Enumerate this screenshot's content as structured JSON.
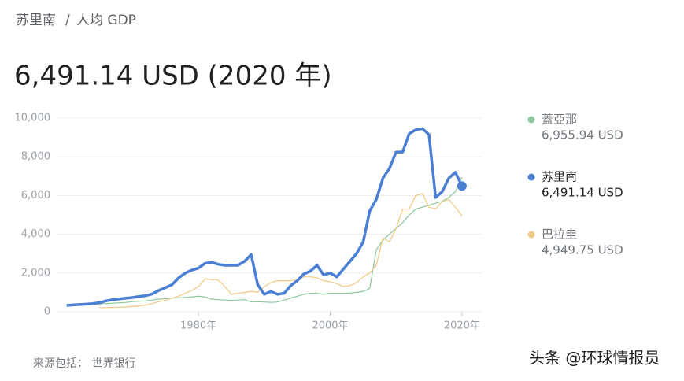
{
  "breadcrumb": [
    "苏里南",
    "/",
    "人均 GDP"
  ],
  "headline": "6,491.14 USD (2020 年)",
  "source": "来源包括： 世界银行",
  "watermark": "头条 @环球情报员",
  "chart_data": {
    "type": "line",
    "x": [
      1960,
      1961,
      1962,
      1963,
      1964,
      1965,
      1966,
      1967,
      1968,
      1969,
      1970,
      1971,
      1972,
      1973,
      1974,
      1975,
      1976,
      1977,
      1978,
      1979,
      1980,
      1981,
      1982,
      1983,
      1984,
      1985,
      1986,
      1987,
      1988,
      1989,
      1990,
      1991,
      1992,
      1993,
      1994,
      1995,
      1996,
      1997,
      1998,
      1999,
      2000,
      2001,
      2002,
      2003,
      2004,
      2005,
      2006,
      2007,
      2008,
      2009,
      2010,
      2011,
      2012,
      2013,
      2014,
      2015,
      2016,
      2017,
      2018,
      2019,
      2020
    ],
    "xlim": [
      1958,
      2023
    ],
    "xticks": [
      {
        "value": 1980,
        "label": "1980年"
      },
      {
        "value": 2000,
        "label": "2000年"
      },
      {
        "value": 2020,
        "label": "2020年"
      }
    ],
    "ylim": [
      0,
      10000
    ],
    "yticks": [
      0,
      {
        "value": 2000,
        "label": "2,000"
      },
      {
        "value": 4000,
        "label": "4,000"
      },
      {
        "value": 6000,
        "label": "6,000"
      },
      {
        "value": 8000,
        "label": "8,000"
      },
      {
        "value": 10000,
        "label": "10,000"
      }
    ],
    "grid": true,
    "series": [
      {
        "name": "蓋亞那",
        "color": "#8cc79c",
        "legend_value": "6,955.94 USD",
        "width": 1.2,
        "values": [
          330,
          340,
          350,
          360,
          380,
          400,
          420,
          440,
          460,
          480,
          520,
          540,
          560,
          600,
          650,
          680,
          700,
          720,
          740,
          770,
          800,
          760,
          650,
          620,
          600,
          580,
          600,
          620,
          500,
          520,
          500,
          480,
          500,
          600,
          700,
          800,
          900,
          950,
          950,
          900,
          950,
          950,
          950,
          960,
          1000,
          1050,
          1200,
          3200,
          3700,
          4000,
          4300,
          4600,
          5000,
          5300,
          5400,
          5500,
          5600,
          5700,
          5900,
          6200,
          6955.94
        ]
      },
      {
        "name": "苏里南",
        "color": "#4a7fd4",
        "legend_value": "6,491.14 USD",
        "width": 3.5,
        "endpoint": true,
        "values": [
          330,
          350,
          370,
          390,
          420,
          470,
          560,
          620,
          660,
          700,
          730,
          790,
          830,
          920,
          1100,
          1250,
          1400,
          1750,
          2000,
          2150,
          2250,
          2500,
          2550,
          2450,
          2400,
          2400,
          2400,
          2600,
          2950,
          1400,
          900,
          1050,
          900,
          950,
          1350,
          1600,
          1950,
          2100,
          2400,
          1900,
          2000,
          1800,
          2200,
          2600,
          3000,
          3600,
          5200,
          5800,
          6900,
          7400,
          8250,
          8250,
          9200,
          9400,
          9450,
          9150,
          5900,
          6200,
          6900,
          7200,
          6491.14
        ]
      },
      {
        "name": "巴拉圭",
        "color": "#f0c983",
        "legend_value": "4,949.75 USD",
        "width": 1.2,
        "values": [
          null,
          null,
          null,
          null,
          null,
          200,
          210,
          220,
          230,
          250,
          270,
          300,
          340,
          420,
          520,
          600,
          700,
          800,
          950,
          1100,
          1300,
          1700,
          1650,
          1650,
          1300,
          900,
          950,
          1000,
          1050,
          1000,
          1300,
          1500,
          1600,
          1600,
          1600,
          1650,
          1800,
          1800,
          1750,
          1600,
          1550,
          1450,
          1300,
          1350,
          1500,
          1800,
          2000,
          2400,
          3800,
          3600,
          4300,
          5300,
          5300,
          6000,
          6100,
          5400,
          5300,
          5700,
          5800,
          5400,
          4949.75
        ]
      }
    ]
  }
}
